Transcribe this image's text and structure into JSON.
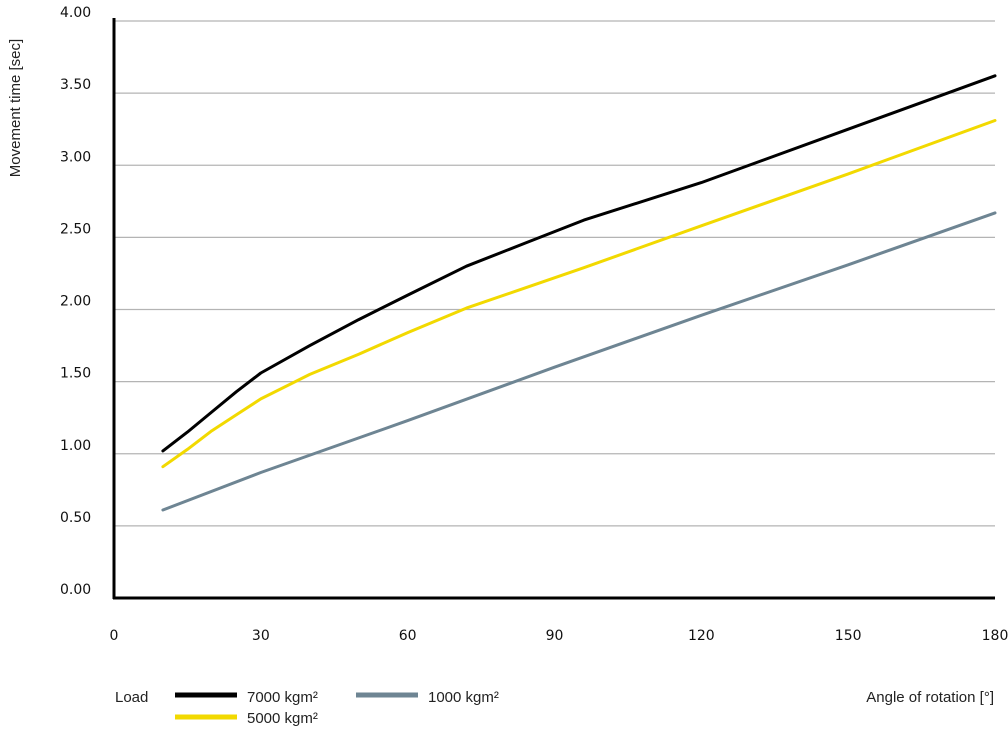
{
  "chart_data": {
    "type": "line",
    "title": "",
    "xlabel": "Angle of rotation [°]",
    "ylabel": "Movement time [sec]",
    "xlim": [
      0,
      180
    ],
    "ylim": [
      0,
      4
    ],
    "xticks": [
      0,
      30,
      60,
      90,
      120,
      150,
      180
    ],
    "xtick_labels": [
      "0",
      "30",
      "60",
      "90",
      "120",
      "150",
      "180"
    ],
    "yticks": [
      0,
      0.5,
      1,
      1.5,
      2,
      2.5,
      3,
      3.5,
      4
    ],
    "ytick_labels": [
      "0.00",
      "0.50",
      "1.00",
      "1.50",
      "2.00",
      "2.50",
      "3.00",
      "3.50",
      "4.00"
    ],
    "grid": "horizontal",
    "legend_title": "Load",
    "legend_position": "bottom-left",
    "series": [
      {
        "name": "7000 kgm²",
        "color": "#000000",
        "x": [
          10,
          15,
          20,
          25,
          30,
          40,
          50,
          60,
          72,
          84,
          96,
          120,
          150,
          180
        ],
        "y": [
          1.02,
          1.15,
          1.29,
          1.43,
          1.56,
          1.75,
          1.93,
          2.1,
          2.3,
          2.46,
          2.62,
          2.88,
          3.25,
          3.62
        ]
      },
      {
        "name": "5000 kgm²",
        "color": "#f2d900",
        "x": [
          10,
          15,
          20,
          25,
          30,
          40,
          50,
          60,
          72,
          84,
          96,
          120,
          150,
          180
        ],
        "y": [
          0.91,
          1.03,
          1.16,
          1.27,
          1.38,
          1.55,
          1.69,
          1.84,
          2.01,
          2.15,
          2.29,
          2.58,
          2.94,
          3.31
        ]
      },
      {
        "name": "1000 kgm²",
        "color": "#6e8593",
        "x": [
          10,
          30,
          60,
          90,
          120,
          150,
          180
        ],
        "y": [
          0.61,
          0.87,
          1.23,
          1.6,
          1.96,
          2.31,
          2.67
        ]
      }
    ]
  }
}
